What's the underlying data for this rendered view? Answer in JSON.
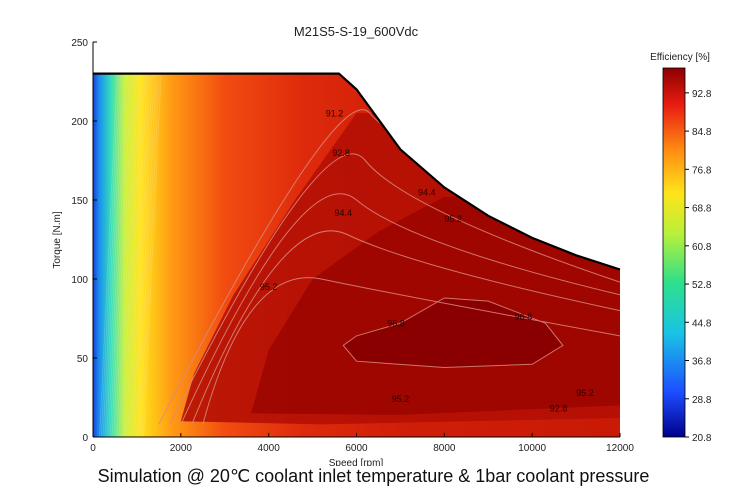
{
  "caption": "Simulation @ 20℃ coolant inlet temperature & 1bar coolant pressure",
  "chart_data": {
    "type": "heatmap",
    "title": "M21S5-S-19_600Vdc",
    "xlabel": "Speed [rpm]",
    "ylabel": "Torque [N.m]",
    "xlim": [
      0,
      12000
    ],
    "ylim": [
      0,
      250
    ],
    "x_ticks": [
      "0",
      "2000",
      "4000",
      "6000",
      "8000",
      "10000",
      "12000"
    ],
    "y_ticks": [
      "0",
      "50",
      "100",
      "150",
      "200",
      "250"
    ],
    "colorbar": {
      "title": "Efficiency [%]",
      "range": [
        20.8,
        98.0
      ],
      "ticks": [
        "92.8",
        "84.8",
        "76.8",
        "68.8",
        "60.8",
        "52.8",
        "44.8",
        "36.8",
        "28.8",
        "20.8"
      ]
    },
    "max_torque_envelope": {
      "speed": [
        0,
        5600,
        6000,
        7000,
        8000,
        9000,
        10000,
        11000,
        12000
      ],
      "torque": [
        230,
        230,
        220,
        182,
        158,
        140,
        126,
        115,
        106
      ]
    },
    "contour_labels": [
      {
        "text": "91.2",
        "x": 5500,
        "y": 203
      },
      {
        "text": "92.8",
        "x": 5650,
        "y": 178
      },
      {
        "text": "94.4",
        "x": 5700,
        "y": 140
      },
      {
        "text": "94.4",
        "x": 7600,
        "y": 153
      },
      {
        "text": "95.2",
        "x": 8200,
        "y": 136
      },
      {
        "text": "95.2",
        "x": 4000,
        "y": 93
      },
      {
        "text": "96.8",
        "x": 6900,
        "y": 70
      },
      {
        "text": "96.8",
        "x": 9800,
        "y": 74
      },
      {
        "text": "95.2",
        "x": 7000,
        "y": 22
      },
      {
        "text": "95.2",
        "x": 11200,
        "y": 26
      },
      {
        "text": "92.8",
        "x": 10600,
        "y": 16
      }
    ]
  }
}
